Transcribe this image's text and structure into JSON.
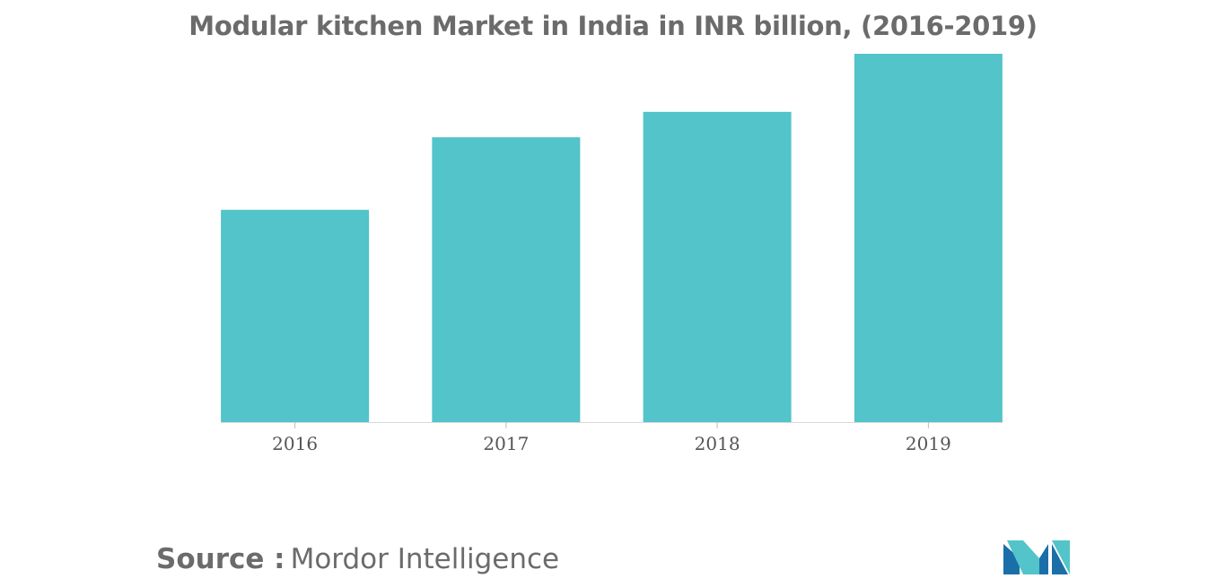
{
  "chart_data": {
    "type": "bar",
    "title": "Modular kitchen Market in India in INR billion, (2016-2019)",
    "categories": [
      "2016",
      "2017",
      "2018",
      "2019"
    ],
    "values": [
      58.5,
      78.5,
      85.5,
      101.5
    ],
    "ylim": [
      0,
      102
    ],
    "xlabel": "",
    "ylabel": "",
    "grid": false,
    "legend": "none",
    "bar_color": "#52c4ca"
  },
  "source": {
    "label": "Source :",
    "name": "Mordor Intelligence"
  },
  "logo": {
    "icon": "mordor-intelligence-logo-icon",
    "colors": [
      "#1b6fa8",
      "#52c4ca"
    ]
  }
}
